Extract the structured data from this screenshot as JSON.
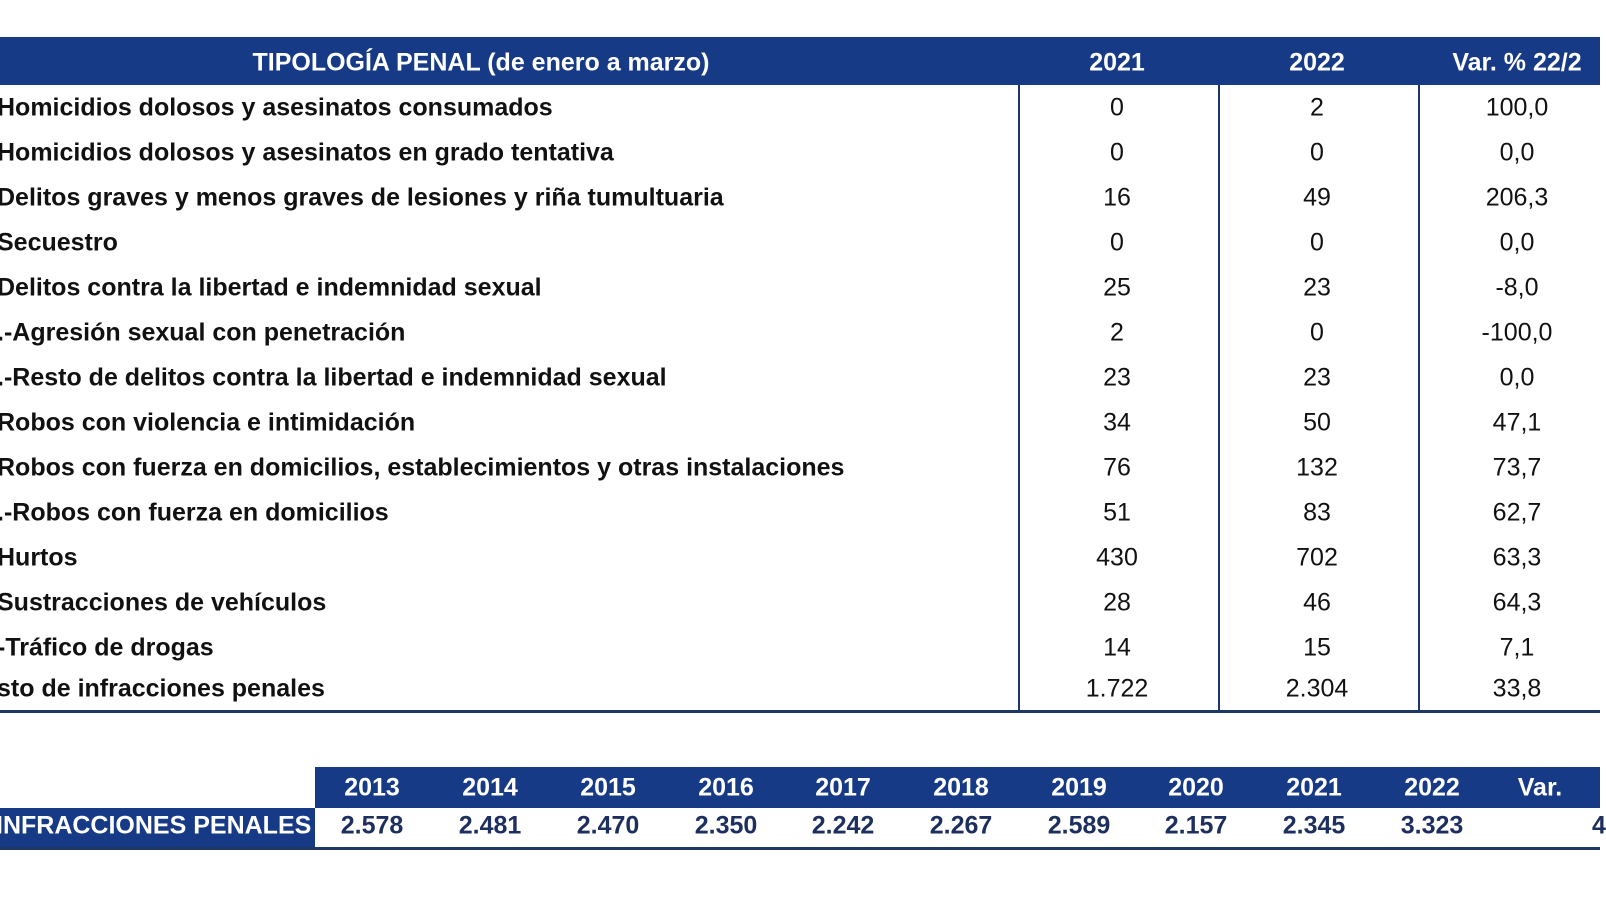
{
  "table": {
    "header": [
      "TIPOLOGÍA PENAL (de enero a marzo)",
      "2021",
      "2022",
      "Var. % 22/2"
    ],
    "rows": [
      [
        "Homicidios dolosos y asesinatos consumados",
        "0",
        "2",
        "100,0"
      ],
      [
        "Homicidios dolosos y asesinatos en grado tentativa",
        "0",
        "0",
        "0,0"
      ],
      [
        "Delitos graves y menos graves de lesiones y riña tumultuaria",
        "16",
        "49",
        "206,3"
      ],
      [
        "Secuestro",
        "0",
        "0",
        "0,0"
      ],
      [
        "Delitos contra la libertad e indemnidad sexual",
        "25",
        "23",
        "-8,0"
      ],
      [
        ".-Agresión sexual con penetración",
        "2",
        "0",
        "-100,0"
      ],
      [
        ".-Resto de delitos contra la libertad e indemnidad sexual",
        "23",
        "23",
        "0,0"
      ],
      [
        "Robos con violencia e intimidación",
        "34",
        "50",
        "47,1"
      ],
      [
        "Robos con fuerza en domicilios, establecimientos y otras instalaciones",
        "76",
        "132",
        "73,7"
      ],
      [
        ".-Robos con fuerza en domicilios",
        "51",
        "83",
        "62,7"
      ],
      [
        "Hurtos",
        "430",
        "702",
        "63,3"
      ],
      [
        "Sustracciones de vehículos",
        "28",
        "46",
        "64,3"
      ],
      [
        "-Tráfico de drogas",
        "14",
        "15",
        "7,1"
      ],
      [
        "sto de infracciones penales",
        "1.722",
        "2.304",
        "33,8"
      ]
    ]
  },
  "summary": {
    "header": [
      "2013",
      "2014",
      "2015",
      "2016",
      "2017",
      "2018",
      "2019",
      "2020",
      "2021",
      "2022",
      "Var."
    ],
    "label": "INFRACCIONES PENALES",
    "values": [
      "2.578",
      "2.481",
      "2.470",
      "2.350",
      "2.242",
      "2.267",
      "2.589",
      "2.157",
      "2.345",
      "3.323",
      "4"
    ]
  }
}
